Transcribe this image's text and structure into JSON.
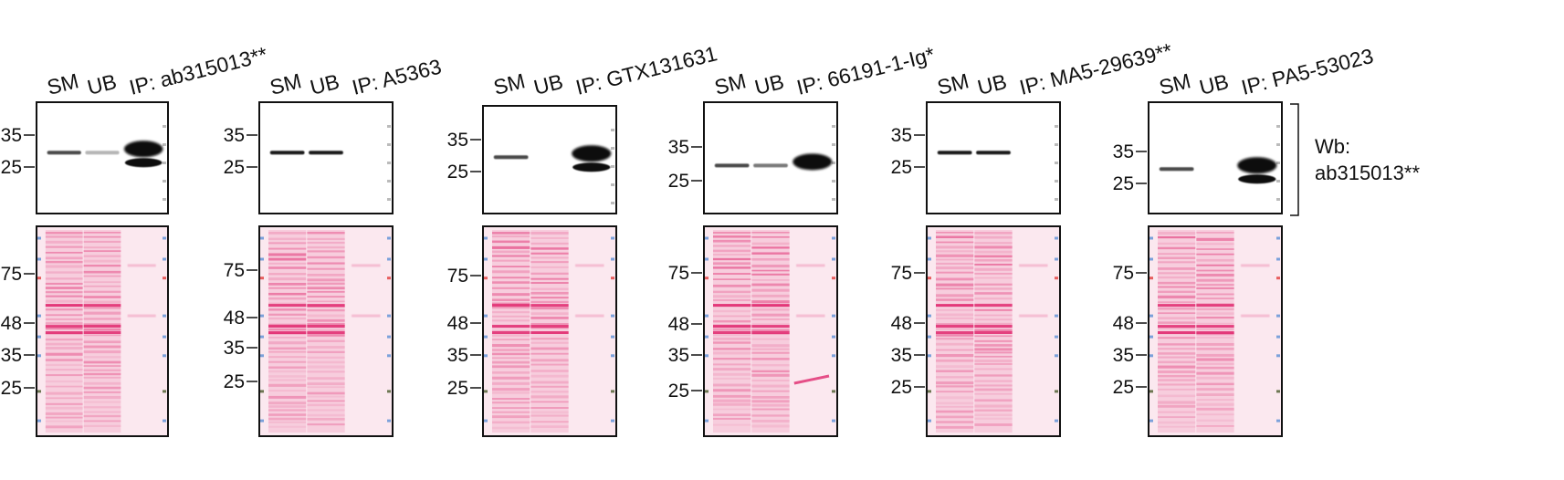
{
  "figure": {
    "panels": [
      {
        "lanes": [
          "SM",
          "UB",
          "IP: ab315013**"
        ],
        "wb_markers": [
          "35",
          "25"
        ],
        "stain_markers": [
          "75",
          "48",
          "35",
          "25"
        ],
        "wb_bands": {
          "SM": 0.5,
          "UB": 0.05,
          "IP": 1.0
        },
        "ip_doublet": true
      },
      {
        "lanes": [
          "SM",
          "UB",
          "IP: A5363"
        ],
        "wb_markers": [
          "35",
          "25"
        ],
        "stain_markers": [
          "75",
          "48",
          "35",
          "25"
        ],
        "wb_bands": {
          "SM": 0.7,
          "UB": 0.7,
          "IP": 0.0
        },
        "ip_doublet": false
      },
      {
        "lanes": [
          "SM",
          "UB",
          "IP: GTX131631"
        ],
        "wb_markers": [
          "35",
          "25"
        ],
        "stain_markers": [
          "75",
          "48",
          "35",
          "25"
        ],
        "wb_bands": {
          "SM": 0.5,
          "UB": 0.0,
          "IP": 1.0
        },
        "ip_doublet": true
      },
      {
        "lanes": [
          "SM",
          "UB",
          "IP: 66191-1-Ig*"
        ],
        "wb_markers": [
          "35",
          "25"
        ],
        "stain_markers": [
          "75",
          "48",
          "35",
          "25"
        ],
        "wb_bands": {
          "SM": 0.5,
          "UB": 0.3,
          "IP": 1.0
        },
        "ip_doublet": false
      },
      {
        "lanes": [
          "SM",
          "UB",
          "IP: MA5-29639**"
        ],
        "wb_markers": [
          "35",
          "25"
        ],
        "stain_markers": [
          "75",
          "48",
          "35",
          "25"
        ],
        "wb_bands": {
          "SM": 0.7,
          "UB": 0.7,
          "IP": 0.0
        },
        "ip_doublet": false
      },
      {
        "lanes": [
          "SM",
          "UB",
          "IP: PA5-53023"
        ],
        "wb_markers": [
          "35",
          "25"
        ],
        "stain_markers": [
          "75",
          "48",
          "35",
          "25"
        ],
        "wb_bands": {
          "SM": 0.5,
          "UB": 0.0,
          "IP": 1.0
        },
        "ip_doublet": true
      }
    ],
    "wb_annotation": [
      "Wb:",
      "ab315013**"
    ]
  },
  "colors": {
    "band": "#0a0a0a",
    "stain": "#e0286e",
    "stain_bg": "#fbe8ef",
    "frame": "#111111"
  }
}
